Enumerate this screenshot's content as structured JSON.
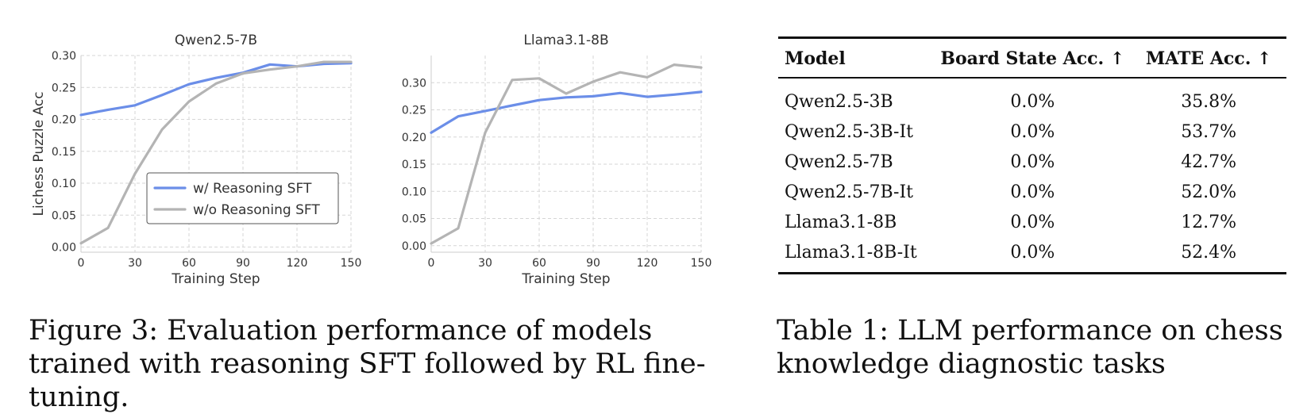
{
  "chart_data": [
    {
      "type": "line",
      "title": "Qwen2.5-7B",
      "xlabel": "Training Step",
      "ylabel": "Lichess Puzzle Acc",
      "xlim": [
        0,
        150
      ],
      "ylim": [
        -0.008,
        0.3
      ],
      "xticks": [
        0,
        30,
        60,
        90,
        120,
        150
      ],
      "yticks": [
        0.0,
        0.05,
        0.1,
        0.15,
        0.2,
        0.25,
        0.3
      ],
      "ytick_labels": [
        "0.00",
        "0.05",
        "0.10",
        "0.15",
        "0.20",
        "0.25",
        "0.30"
      ],
      "grid": true,
      "legend": "lower-right",
      "x": [
        0,
        15,
        30,
        45,
        60,
        75,
        90,
        105,
        120,
        135,
        150
      ],
      "series": [
        {
          "name": "w/ Reasoning SFT",
          "color": "#6b8ee8",
          "values": [
            0.207,
            0.215,
            0.222,
            0.238,
            0.255,
            0.265,
            0.273,
            0.286,
            0.283,
            0.287,
            0.288
          ]
        },
        {
          "name": "w/o Reasoning SFT",
          "color": "#b4b4b4",
          "values": [
            0.006,
            0.03,
            0.115,
            0.184,
            0.228,
            0.256,
            0.272,
            0.278,
            0.283,
            0.29,
            0.29
          ]
        }
      ]
    },
    {
      "type": "line",
      "title": "Llama3.1-8B",
      "xlabel": "Training Step",
      "ylabel": "",
      "xlim": [
        0,
        150
      ],
      "ylim": [
        -0.012,
        0.35
      ],
      "xticks": [
        0,
        30,
        60,
        90,
        120,
        150
      ],
      "yticks": [
        0.0,
        0.05,
        0.1,
        0.15,
        0.2,
        0.25,
        0.3
      ],
      "ytick_labels": [
        "0.00",
        "0.05",
        "0.10",
        "0.15",
        "0.20",
        "0.25",
        "0.30"
      ],
      "grid": true,
      "legend": "none",
      "x": [
        0,
        15,
        30,
        45,
        60,
        75,
        90,
        105,
        120,
        135,
        150
      ],
      "series": [
        {
          "name": "w/ Reasoning SFT",
          "color": "#6b8ee8",
          "values": [
            0.208,
            0.238,
            0.248,
            0.258,
            0.268,
            0.273,
            0.275,
            0.281,
            0.274,
            0.278,
            0.283
          ]
        },
        {
          "name": "w/o Reasoning SFT",
          "color": "#b4b4b4",
          "values": [
            0.004,
            0.032,
            0.208,
            0.305,
            0.308,
            0.28,
            0.302,
            0.319,
            0.31,
            0.333,
            0.328
          ]
        }
      ]
    }
  ],
  "figure_caption": "Figure 3: Evaluation performance of models trained with reasoning SFT followed by RL fine-tuning.",
  "table": {
    "headers": [
      "Model",
      "Board State Acc. ↑",
      "MATE Acc. ↑"
    ],
    "rows": [
      [
        "Qwen2.5-3B",
        "0.0%",
        "35.8%"
      ],
      [
        "Qwen2.5-3B-It",
        "0.0%",
        "53.7%"
      ],
      [
        "Qwen2.5-7B",
        "0.0%",
        "42.7%"
      ],
      [
        "Qwen2.5-7B-It",
        "0.0%",
        "52.0%"
      ],
      [
        "Llama3.1-8B",
        "0.0%",
        "12.7%"
      ],
      [
        "Llama3.1-8B-It",
        "0.0%",
        "52.4%"
      ]
    ],
    "caption": "Table 1: LLM performance on chess knowledge diagnostic tasks"
  }
}
